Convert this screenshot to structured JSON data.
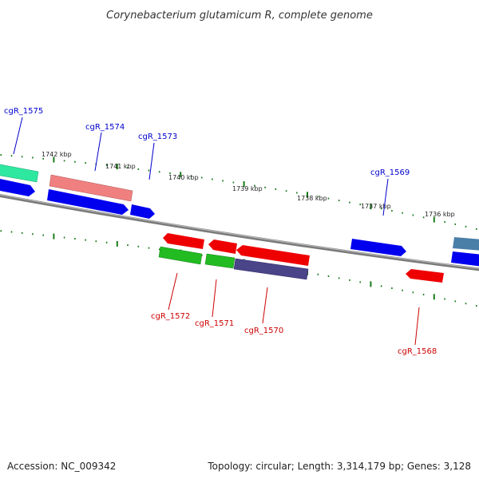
{
  "title": "Corynebacterium glutamicum R, complete genome",
  "footer": {
    "accession": "Accession: NC_009342",
    "summary": "Topology: circular; Length: 3,314,179 bp; Genes: 3,128"
  },
  "colors": {
    "forward_label": "#0000cc",
    "reverse_label": "#cc0000",
    "tick": "#1a7a1a",
    "backbone": "#808080"
  },
  "ruler_labels": [
    "1742 kbp",
    "1741 kbp",
    "1740 kbp",
    "1739 kbp",
    "1738 kbp",
    "1737 kbp",
    "1736 kbp"
  ],
  "gene_labels": {
    "forward": [
      "cgR_1575",
      "cgR_1574",
      "cgR_1573",
      "cgR_1569"
    ],
    "reverse": [
      "cgR_1572",
      "cgR_1571",
      "cgR_1570",
      "cgR_1568"
    ]
  },
  "features": [
    {
      "name": "feature-outer-teal",
      "color": "#2ee8a0"
    },
    {
      "name": "feature-outer-pink",
      "color": "#f08080"
    },
    {
      "name": "feature-blue-left",
      "color": "#0000ee"
    },
    {
      "name": "feature-blue-long",
      "color": "#0000ee"
    },
    {
      "name": "feature-blue-1573",
      "color": "#0000ee"
    },
    {
      "name": "feature-blue-1569",
      "color": "#0000ee"
    },
    {
      "name": "feature-blue-right",
      "color": "#0000ee"
    },
    {
      "name": "feature-steel-right",
      "color": "#4a7fa8"
    },
    {
      "name": "feature-red-a",
      "color": "#ee0000"
    },
    {
      "name": "feature-red-b",
      "color": "#ee0000"
    },
    {
      "name": "feature-red-c",
      "color": "#ee0000"
    },
    {
      "name": "feature-red-1568",
      "color": "#ee0000"
    },
    {
      "name": "feature-green-a",
      "color": "#22bb22"
    },
    {
      "name": "feature-green-b",
      "color": "#22bb22"
    },
    {
      "name": "feature-purple",
      "color": "#4a4488"
    }
  ]
}
